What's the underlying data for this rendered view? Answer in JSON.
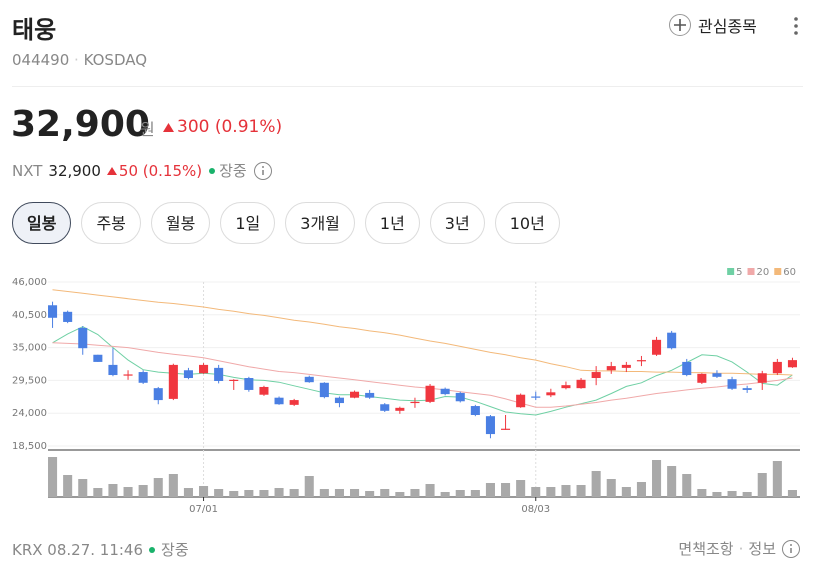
{
  "header": {
    "title": "태웅",
    "code": "044490",
    "market": "KOSDAQ",
    "watch": "관심종목"
  },
  "price": {
    "value": "32,900",
    "unit": "원",
    "change": "300 (0.91%)",
    "nxt_label": "NXT",
    "nxt_value": "32,900",
    "nxt_change": "50 (0.15%)",
    "status": "장중"
  },
  "tabs": {
    "items": [
      "일봉",
      "주봉",
      "월봉",
      "1일",
      "3개월",
      "1년",
      "3년",
      "10년"
    ],
    "active": 0
  },
  "chart_data": {
    "type": "candlestick",
    "categories": [
      null,
      null,
      null,
      null,
      null,
      null,
      null,
      null,
      null,
      null,
      "07/01",
      null,
      null,
      null,
      null,
      null,
      null,
      null,
      null,
      null,
      null,
      null,
      null,
      null,
      null,
      null,
      null,
      null,
      null,
      null,
      null,
      null,
      "08/03",
      null,
      null,
      null,
      null,
      null,
      null,
      null,
      null,
      null,
      null,
      null,
      null,
      null,
      null,
      null,
      null,
      null
    ],
    "open": [
      42100,
      41000,
      38300,
      33800,
      32100,
      30300,
      30900,
      28200,
      26400,
      31200,
      30700,
      31600,
      29500,
      29900,
      27100,
      26600,
      25400,
      30100,
      29100,
      26600,
      26600,
      27400,
      25500,
      24400,
      25800,
      25900,
      28100,
      27400,
      25200,
      23500,
      21200,
      25000,
      26800,
      27000,
      28200,
      28200,
      29900,
      31200,
      31600,
      32700,
      33800,
      37500,
      32600,
      29100,
      30700,
      29700,
      28200,
      29100,
      30700,
      31700
    ],
    "high": [
      42700,
      41200,
      38600,
      33800,
      34900,
      31200,
      31200,
      28400,
      32300,
      31600,
      32400,
      32100,
      29700,
      30100,
      28600,
      26800,
      26400,
      30300,
      29200,
      26800,
      27800,
      27900,
      25700,
      25100,
      26600,
      28900,
      28300,
      27600,
      25400,
      23700,
      23700,
      27300,
      27600,
      28100,
      29300,
      29900,
      31900,
      32600,
      32600,
      33600,
      36800,
      37800,
      33100,
      30700,
      31200,
      30100,
      28600,
      31100,
      33100,
      33300
    ],
    "low": [
      38300,
      39100,
      33800,
      32600,
      30200,
      29600,
      28900,
      25500,
      26200,
      29700,
      30600,
      29000,
      27900,
      27600,
      26900,
      25400,
      25200,
      29100,
      26500,
      25000,
      26500,
      26400,
      24200,
      23900,
      24900,
      25700,
      27000,
      25800,
      23500,
      19800,
      21200,
      24900,
      26200,
      26700,
      28000,
      28100,
      28700,
      30600,
      30900,
      31900,
      33600,
      34700,
      30200,
      28900,
      29900,
      27900,
      27400,
      27900,
      30400,
      31600
    ],
    "close": [
      40000,
      39300,
      34900,
      32600,
      30400,
      30500,
      29100,
      26200,
      32100,
      29900,
      32100,
      29400,
      29600,
      27900,
      28400,
      25500,
      26200,
      29200,
      26700,
      25700,
      27600,
      26600,
      24400,
      24900,
      25900,
      28600,
      27200,
      26000,
      23700,
      20500,
      21400,
      27100,
      26600,
      27500,
      28700,
      29600,
      30900,
      31900,
      32100,
      32900,
      36300,
      34900,
      30400,
      30600,
      30100,
      28100,
      27900,
      30700,
      32600,
      32900
    ],
    "up_color": "#f0373f",
    "down_color": "#4a7fe3",
    "ylim": [
      18500,
      46000
    ],
    "yticks": [
      {
        "value": 46000,
        "label": "46,000"
      },
      {
        "value": 40500,
        "label": "40,500"
      },
      {
        "value": 35000,
        "label": "35,000"
      },
      {
        "value": 29500,
        "label": "29,500"
      },
      {
        "value": 24000,
        "label": "24,000"
      },
      {
        "value": 18500,
        "label": "18,500"
      }
    ],
    "grid": true,
    "series": [
      {
        "name": "5",
        "color": "#6fd0a4",
        "values": [
          35800,
          37300,
          38500,
          37200,
          35000,
          32900,
          31300,
          30900,
          30700,
          30500,
          30700,
          30500,
          30000,
          29600,
          29500,
          29200,
          28600,
          28000,
          27400,
          27100,
          27100,
          26800,
          26500,
          26200,
          26100,
          26200,
          26800,
          26700,
          26000,
          25100,
          24200,
          23900,
          23700,
          24300,
          25000,
          25600,
          26200,
          27300,
          28500,
          29100,
          30300,
          31200,
          32500,
          33800,
          33600,
          32600,
          30900,
          29000,
          28700,
          30400
        ]
      },
      {
        "name": "20",
        "color": "#f0a9a9",
        "values": [
          35800,
          35700,
          35600,
          35400,
          35200,
          35000,
          34600,
          34200,
          33900,
          33600,
          33300,
          32800,
          32300,
          31800,
          31400,
          31000,
          30800,
          30500,
          30200,
          29900,
          29600,
          29300,
          29000,
          28700,
          28400,
          28200,
          27900,
          27600,
          27300,
          27000,
          26400,
          25700,
          25000,
          25000,
          25200,
          25500,
          25800,
          26200,
          26500,
          26900,
          27300,
          27600,
          27900,
          28200,
          28400,
          28700,
          28900,
          29200,
          29500,
          29900
        ]
      },
      {
        "name": "60",
        "color": "#f3b97a",
        "values": [
          44700,
          44400,
          44100,
          43800,
          43500,
          43200,
          42900,
          42600,
          42400,
          42100,
          41800,
          41400,
          41100,
          40700,
          40400,
          40000,
          39600,
          39300,
          38900,
          38500,
          38200,
          37800,
          37500,
          37100,
          36600,
          36100,
          35700,
          35200,
          34700,
          34200,
          33800,
          33300,
          32900,
          32300,
          31800,
          31200,
          31100,
          31100,
          31000,
          31000,
          30900,
          30900,
          30800,
          30800,
          30700,
          30700,
          30600,
          30500,
          30500,
          30400
        ]
      }
    ],
    "volume": [
      40,
      22,
      18,
      9,
      13,
      10,
      12,
      19,
      23,
      9,
      11,
      8,
      6,
      7,
      7,
      9,
      8,
      21,
      8,
      8,
      8,
      6,
      8,
      5,
      8,
      13,
      5,
      7,
      7,
      14,
      14,
      17,
      10,
      10,
      12,
      12,
      26,
      18,
      10,
      15,
      37,
      31,
      23,
      8,
      5,
      6,
      5,
      24,
      36,
      7
    ],
    "volume_color": "#a9a9a9"
  },
  "footer": {
    "source": "KRX 08.27. 11:46",
    "status": "장중",
    "disclaimer": "면책조항",
    "info": "정보"
  }
}
